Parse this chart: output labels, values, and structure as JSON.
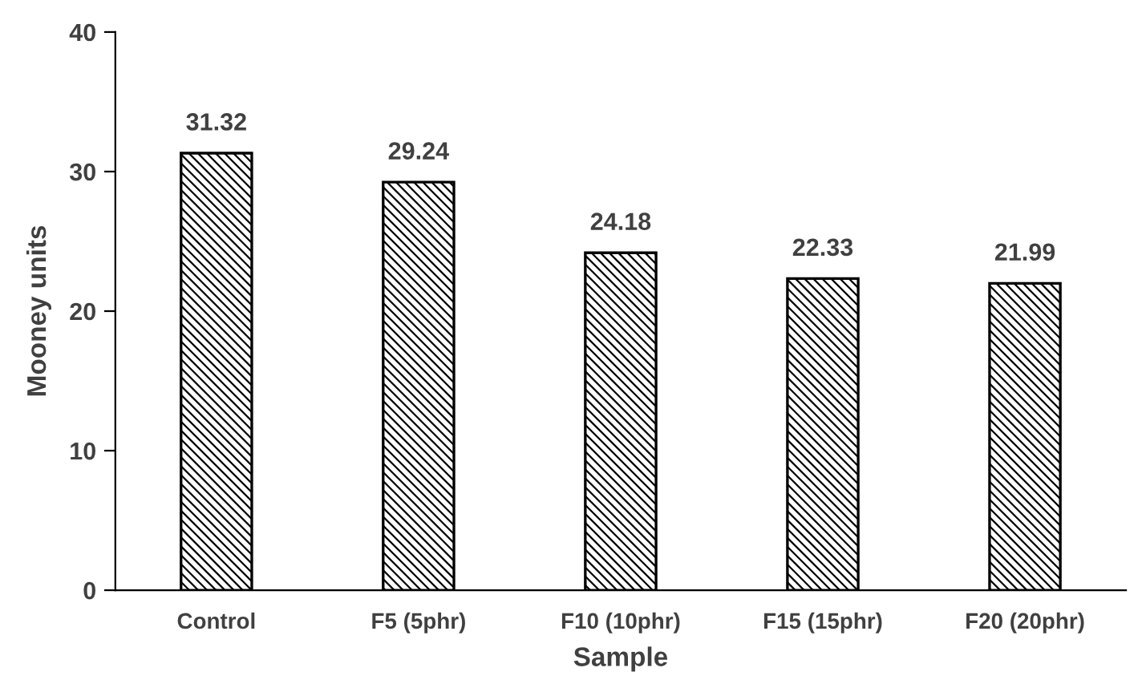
{
  "chart_data": {
    "type": "bar",
    "xlabel": "Sample",
    "ylabel": "Mooney units",
    "categories": [
      "Control",
      "F5 (5phr)",
      "F10 (10phr)",
      "F15 (15phr)",
      "F20 (20phr)"
    ],
    "values": [
      31.32,
      29.24,
      24.18,
      22.33,
      21.99
    ],
    "color": "#000000",
    "ylim": [
      0,
      40
    ],
    "yticks": [
      0,
      10,
      20,
      30,
      40
    ],
    "grid": false,
    "data_labels": true
  }
}
